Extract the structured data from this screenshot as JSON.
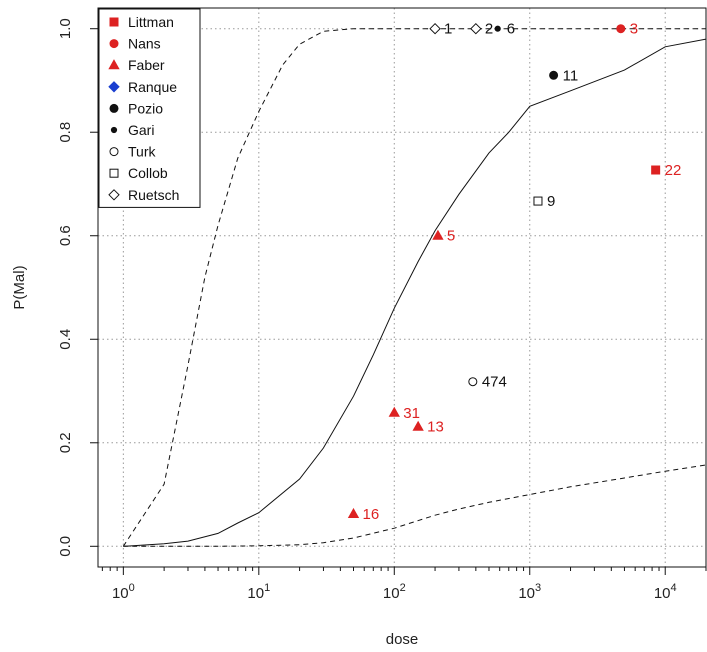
{
  "chart_data": {
    "type": "scatter",
    "title": "",
    "xlabel": "dose",
    "ylabel": "P(Mal)",
    "x_scale": "log10",
    "xlim": [
      0.65,
      20000
    ],
    "ylim": [
      -0.04,
      1.04
    ],
    "x_ticks": [
      {
        "value": 1,
        "base": "10",
        "exp": "0"
      },
      {
        "value": 10,
        "base": "10",
        "exp": "1"
      },
      {
        "value": 100,
        "base": "10",
        "exp": "2"
      },
      {
        "value": 1000,
        "base": "10",
        "exp": "3"
      },
      {
        "value": 10000,
        "base": "10",
        "exp": "4"
      }
    ],
    "y_ticks": [
      {
        "value": 0.0,
        "label": "0.0"
      },
      {
        "value": 0.2,
        "label": "0.2"
      },
      {
        "value": 0.4,
        "label": "0.4"
      },
      {
        "value": 0.6,
        "label": "0.6"
      },
      {
        "value": 0.8,
        "label": "0.8"
      },
      {
        "value": 1.0,
        "label": "1.0"
      }
    ],
    "grid": true,
    "legend_position": "top-left",
    "legend": [
      {
        "name": "Littman",
        "marker": "square",
        "fill": "#dd2222",
        "stroke": "#dd2222"
      },
      {
        "name": "Nans",
        "marker": "circle",
        "fill": "#dd2222",
        "stroke": "#dd2222"
      },
      {
        "name": "Faber",
        "marker": "triangle",
        "fill": "#dd2222",
        "stroke": "#dd2222"
      },
      {
        "name": "Ranque",
        "marker": "diamond",
        "fill": "#1a3fd0",
        "stroke": "#1a3fd0"
      },
      {
        "name": "Pozio",
        "marker": "circle",
        "fill": "#111111",
        "stroke": "#111111"
      },
      {
        "name": "Gari",
        "marker": "smalldot",
        "fill": "#111111",
        "stroke": "#111111"
      },
      {
        "name": "Turk",
        "marker": "circle",
        "fill": "#ffffff",
        "stroke": "#111111"
      },
      {
        "name": "Collob",
        "marker": "square",
        "fill": "#ffffff",
        "stroke": "#111111"
      },
      {
        "name": "Ruetsch",
        "marker": "diamond",
        "fill": "#ffffff",
        "stroke": "#111111"
      }
    ],
    "points": [
      {
        "x": 200,
        "y": 1.0,
        "label": "1",
        "marker": "diamond",
        "fill": "#ffffff",
        "stroke": "#111111",
        "label_color": "#111111"
      },
      {
        "x": 400,
        "y": 1.0,
        "label": "2",
        "marker": "diamond",
        "fill": "#ffffff",
        "stroke": "#111111",
        "label_color": "#111111"
      },
      {
        "x": 580,
        "y": 1.0,
        "label": "6",
        "marker": "smalldot",
        "fill": "#111111",
        "stroke": "#111111",
        "label_color": "#111111"
      },
      {
        "x": 4700,
        "y": 1.0,
        "label": "3",
        "marker": "circle",
        "fill": "#dd2222",
        "stroke": "#dd2222",
        "label_color": "#dd2222"
      },
      {
        "x": 1500,
        "y": 0.91,
        "label": "11",
        "marker": "circle",
        "fill": "#111111",
        "stroke": "#111111",
        "label_color": "#111111"
      },
      {
        "x": 8500,
        "y": 0.727,
        "label": "22",
        "marker": "square",
        "fill": "#dd2222",
        "stroke": "#dd2222",
        "label_color": "#dd2222"
      },
      {
        "x": 1150,
        "y": 0.667,
        "label": "9",
        "marker": "square",
        "fill": "#ffffff",
        "stroke": "#111111",
        "label_color": "#111111"
      },
      {
        "x": 210,
        "y": 0.6,
        "label": "5",
        "marker": "triangle",
        "fill": "#dd2222",
        "stroke": "#dd2222",
        "label_color": "#dd2222"
      },
      {
        "x": 380,
        "y": 0.318,
        "label": "474",
        "marker": "circle",
        "fill": "#ffffff",
        "stroke": "#111111",
        "label_color": "#111111"
      },
      {
        "x": 100,
        "y": 0.258,
        "label": "31",
        "marker": "triangle",
        "fill": "#dd2222",
        "stroke": "#dd2222",
        "label_color": "#dd2222"
      },
      {
        "x": 150,
        "y": 0.231,
        "label": "13",
        "marker": "triangle",
        "fill": "#dd2222",
        "stroke": "#dd2222",
        "label_color": "#dd2222"
      },
      {
        "x": 50,
        "y": 0.0625,
        "label": "16",
        "marker": "triangle",
        "fill": "#dd2222",
        "stroke": "#dd2222",
        "label_color": "#dd2222"
      }
    ],
    "curves": [
      {
        "style": "solid",
        "x": [
          1,
          2,
          3,
          5,
          7,
          10,
          20,
          30,
          50,
          70,
          100,
          150,
          200,
          300,
          500,
          700,
          1000,
          2000,
          5000,
          10000,
          20000
        ],
        "y": [
          0.0,
          0.005,
          0.01,
          0.025,
          0.045,
          0.065,
          0.13,
          0.19,
          0.29,
          0.37,
          0.46,
          0.55,
          0.61,
          0.68,
          0.76,
          0.8,
          0.85,
          0.88,
          0.92,
          0.965,
          0.98
        ]
      },
      {
        "style": "dashed",
        "x": [
          1,
          2,
          3,
          4,
          5,
          7,
          10,
          15,
          20,
          30,
          50,
          100,
          1000,
          20000
        ],
        "y": [
          0.0,
          0.12,
          0.35,
          0.52,
          0.62,
          0.75,
          0.84,
          0.93,
          0.97,
          0.995,
          1.0,
          1.0,
          1.0,
          1.0
        ]
      },
      {
        "style": "dashed",
        "x": [
          1,
          5,
          10,
          20,
          30,
          50,
          100,
          200,
          300,
          500,
          1000,
          2000,
          5000,
          10000,
          20000
        ],
        "y": [
          0.0,
          0.0,
          0.001,
          0.003,
          0.007,
          0.016,
          0.035,
          0.06,
          0.072,
          0.085,
          0.1,
          0.115,
          0.132,
          0.145,
          0.157
        ]
      }
    ]
  }
}
